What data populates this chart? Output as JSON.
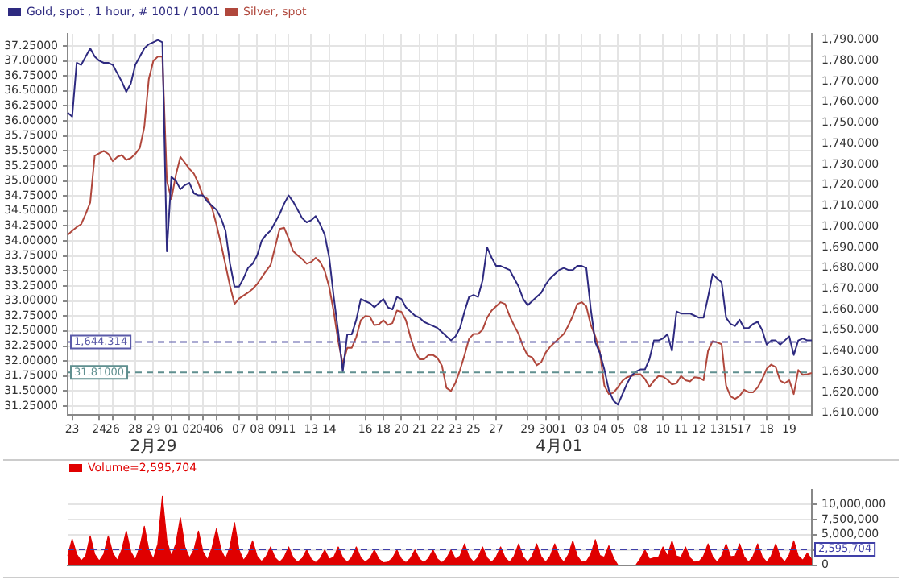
{
  "chart_data": [
    {
      "type": "line",
      "marker": "none",
      "grid": true,
      "legend": "top left",
      "categories": [
        null,
        "23",
        null,
        null,
        null,
        null,
        null,
        "24",
        null,
        null,
        "26",
        null,
        null,
        null,
        null,
        "28",
        null,
        null,
        null,
        "29\n2月29",
        null,
        null,
        null,
        "01",
        null,
        null,
        null,
        "02",
        null,
        null,
        "04",
        null,
        null,
        "06",
        null,
        null,
        null,
        null,
        "07",
        null,
        null,
        null,
        "08",
        null,
        null,
        null,
        "09",
        null,
        null,
        "11",
        null,
        null,
        null,
        null,
        "13",
        null,
        null,
        null,
        "14",
        null,
        null,
        null,
        null,
        null,
        null,
        null,
        "16",
        null,
        null,
        null,
        "18",
        null,
        null,
        null,
        "20",
        null,
        null,
        null,
        "21",
        null,
        null,
        null,
        "22",
        null,
        null,
        null,
        "23",
        null,
        null,
        null,
        "25",
        null,
        null,
        null,
        null,
        "27",
        null,
        null,
        null,
        null,
        null,
        null,
        "29",
        null,
        null,
        null,
        "30",
        null,
        null,
        "01\n4月01",
        null,
        null,
        null,
        null,
        "03",
        null,
        null,
        null,
        "04",
        null,
        null,
        null,
        "05",
        null,
        null,
        null,
        null,
        "08",
        null,
        null,
        null,
        null,
        "10",
        null,
        null,
        null,
        "11",
        null,
        null,
        null,
        "12",
        null,
        null,
        null,
        "13",
        null,
        null,
        "15",
        null,
        null,
        "17",
        null,
        null,
        null,
        null,
        "18",
        null,
        null,
        null,
        null,
        "19",
        null,
        null,
        null,
        null,
        null
      ],
      "series": [
        {
          "name": "Gold, spot , 1 hour, # 1001 / 1001",
          "color": "#2e2a80",
          "axis": "y2",
          "values": [
            1755,
            1753,
            1779,
            1778,
            1782,
            1786,
            1782,
            1780,
            1779,
            1779,
            1778,
            1774,
            1770,
            1765,
            1769,
            1778,
            1782,
            1786,
            1788,
            1789,
            1790,
            1789,
            1688,
            1724,
            1722,
            1718,
            1720,
            1721,
            1716,
            1715,
            1715,
            1712,
            1710,
            1708,
            1704,
            1698,
            1682,
            1671,
            1671,
            1675,
            1680,
            1682,
            1686,
            1693,
            1696,
            1698,
            1702,
            1706,
            1711,
            1715,
            1712,
            1708,
            1704,
            1702,
            1703,
            1705,
            1701,
            1696,
            1685,
            1666,
            1649,
            1630,
            1648,
            1648,
            1655,
            1665,
            1664,
            1663,
            1661,
            1663,
            1665,
            1661,
            1660,
            1666,
            1665,
            1661,
            1659,
            1657,
            1656,
            1654,
            1653,
            1652,
            1651,
            1649,
            1647,
            1645,
            1647,
            1651,
            1659,
            1666,
            1667,
            1666,
            1674,
            1690,
            1685,
            1681,
            1681,
            1680,
            1679,
            1675,
            1671,
            1665,
            1662,
            1664,
            1666,
            1668,
            1672,
            1675,
            1677,
            1679,
            1680,
            1679,
            1679,
            1681,
            1681,
            1680,
            1660,
            1644,
            1639,
            1631,
            1621,
            1616,
            1614,
            1619,
            1624,
            1628,
            1630,
            1631,
            1631,
            1636,
            1645,
            1645,
            1646,
            1648,
            1640,
            1659,
            1658,
            1658,
            1658,
            1657,
            1656,
            1656,
            1666,
            1677,
            1675,
            1673,
            1656,
            1653,
            1652,
            1655,
            1651,
            1651,
            1653,
            1654,
            1650,
            1643,
            1645,
            1645,
            1643,
            1645,
            1647,
            1638,
            1645,
            1646,
            1645,
            1645
          ]
        },
        {
          "name": "Silver, spot",
          "color": "#b0473c",
          "values": [
            34.1,
            34.17,
            34.23,
            34.28,
            34.45,
            34.64,
            35.42,
            35.46,
            35.5,
            35.45,
            35.33,
            35.4,
            35.43,
            35.35,
            35.38,
            35.45,
            35.55,
            35.9,
            36.7,
            37.0,
            37.07,
            37.07,
            35.0,
            34.7,
            35.1,
            35.4,
            35.3,
            35.2,
            35.12,
            34.96,
            34.75,
            34.7,
            34.55,
            34.27,
            33.95,
            33.6,
            33.25,
            32.95,
            33.04,
            33.09,
            33.14,
            33.2,
            33.28,
            33.39,
            33.5,
            33.6,
            33.9,
            34.2,
            34.22,
            34.04,
            33.83,
            33.76,
            33.7,
            33.62,
            33.65,
            33.72,
            33.65,
            33.5,
            33.23,
            32.82,
            32.33,
            31.95,
            32.22,
            32.22,
            32.4,
            32.68,
            32.75,
            32.74,
            32.6,
            32.61,
            32.68,
            32.6,
            32.63,
            32.84,
            32.82,
            32.68,
            32.4,
            32.17,
            32.03,
            32.03,
            32.1,
            32.1,
            32.05,
            31.92,
            31.55,
            31.5,
            31.64,
            31.85,
            32.1,
            32.37,
            32.45,
            32.45,
            32.52,
            32.72,
            32.84,
            32.91,
            32.98,
            32.95,
            32.75,
            32.59,
            32.45,
            32.24,
            32.09,
            32.06,
            31.93,
            31.98,
            32.14,
            32.24,
            32.31,
            32.38,
            32.45,
            32.59,
            32.75,
            32.95,
            32.98,
            32.91,
            32.6,
            32.41,
            32.15,
            31.59,
            31.45,
            31.47,
            31.56,
            31.67,
            31.73,
            31.75,
            31.78,
            31.78,
            31.7,
            31.57,
            31.67,
            31.75,
            31.74,
            31.69,
            31.61,
            31.63,
            31.75,
            31.68,
            31.66,
            31.73,
            31.72,
            31.68,
            32.17,
            32.33,
            32.31,
            32.28,
            31.59,
            31.41,
            31.37,
            31.42,
            31.52,
            31.48,
            31.48,
            31.56,
            31.7,
            31.87,
            31.94,
            31.9,
            31.67,
            31.63,
            31.68,
            31.45,
            31.85,
            31.77,
            31.78,
            31.8
          ]
        }
      ],
      "ylim": [
        31.1,
        37.45
      ],
      "yticks": [
        {
          "value": 31.25,
          "label": "31.25000"
        },
        {
          "value": 31.5,
          "label": "31.50000"
        },
        {
          "value": 31.75,
          "label": "31.75000"
        },
        {
          "value": 32,
          "label": "32.00000"
        },
        {
          "value": 32.25,
          "label": "32.25000"
        },
        {
          "value": 32.5,
          "label": "32.50000"
        },
        {
          "value": 32.75,
          "label": "32.75000"
        },
        {
          "value": 33,
          "label": "33.00000"
        },
        {
          "value": 33.25,
          "label": "33.25000"
        },
        {
          "value": 33.5,
          "label": "33.50000"
        },
        {
          "value": 33.75,
          "label": "33.75000"
        },
        {
          "value": 34,
          "label": "34.00000"
        },
        {
          "value": 34.25,
          "label": "34.25000"
        },
        {
          "value": 34.5,
          "label": "34.50000"
        },
        {
          "value": 34.75,
          "label": "34.75000"
        },
        {
          "value": 35,
          "label": "35.00000"
        },
        {
          "value": 35.25,
          "label": "35.25000"
        },
        {
          "value": 35.5,
          "label": "35.50000"
        },
        {
          "value": 35.75,
          "label": "35.75000"
        },
        {
          "value": 36,
          "label": "36.00000"
        },
        {
          "value": 36.25,
          "label": "36.25000"
        },
        {
          "value": 36.5,
          "label": "36.50000"
        },
        {
          "value": 36.75,
          "label": "36.75000"
        },
        {
          "value": 37,
          "label": "37.00000"
        },
        {
          "value": 37.25,
          "label": "37.25000"
        }
      ],
      "y2lim": [
        1609,
        1793
      ],
      "y2ticks": [
        {
          "value": 1610,
          "label": "1,610.000"
        },
        {
          "value": 1620,
          "label": "1,620.000"
        },
        {
          "value": 1630,
          "label": "1,630.000"
        },
        {
          "value": 1640,
          "label": "1,640.000"
        },
        {
          "value": 1650,
          "label": "1,650.000"
        },
        {
          "value": 1660,
          "label": "1,660.000"
        },
        {
          "value": 1670,
          "label": "1,670.000"
        },
        {
          "value": 1680,
          "label": "1,680.000"
        },
        {
          "value": 1690,
          "label": "1,690.000"
        },
        {
          "value": 1700,
          "label": "1,700.000"
        },
        {
          "value": 1710,
          "label": "1,710.000"
        },
        {
          "value": 1720,
          "label": "1,720.000"
        },
        {
          "value": 1730,
          "label": "1,730.000"
        },
        {
          "value": 1740,
          "label": "1,740.000"
        },
        {
          "value": 1750,
          "label": "1,750.000"
        },
        {
          "value": 1760,
          "label": "1,760.000"
        },
        {
          "value": 1770,
          "label": "1,770.000"
        },
        {
          "value": 1780,
          "label": "1,780.000"
        },
        {
          "value": 1790,
          "label": "1,790.000"
        }
      ],
      "ref_lines": [
        {
          "axis": "y2",
          "value": 1644.314,
          "label": "1,644.314",
          "color": "#5a5aa8",
          "line_style": "dashed"
        },
        {
          "axis": "y",
          "value": 31.81,
          "label": "31.81000",
          "color": "#5f8f8f",
          "line_style": "dashed"
        }
      ]
    },
    {
      "type": "area",
      "marker": "none",
      "grid": true,
      "legend": "top left",
      "tick_labels": "y",
      "categories": [
        null,
        null,
        null,
        null,
        null,
        null,
        null,
        null,
        null,
        null,
        null,
        null,
        null,
        null,
        null,
        null,
        null,
        null,
        null,
        null,
        null,
        null,
        null,
        null,
        null,
        null,
        null,
        null,
        null,
        null,
        null,
        null,
        null,
        null,
        null,
        null,
        null,
        null,
        null,
        null,
        null,
        null,
        null,
        null,
        null,
        null,
        null,
        null,
        null,
        null,
        null,
        null,
        null,
        null,
        null,
        null,
        null,
        null,
        null,
        null,
        null,
        null,
        null,
        null,
        null,
        null,
        null,
        null,
        null,
        null,
        null,
        null,
        null,
        null,
        null,
        null,
        null,
        null,
        null,
        null,
        null,
        null,
        null,
        null,
        null,
        null,
        null,
        null,
        null,
        null,
        null,
        null,
        null,
        null,
        null,
        null,
        null,
        null,
        null,
        null,
        null,
        null,
        null,
        null,
        null,
        null,
        null,
        null,
        null,
        null,
        null,
        null,
        null,
        null,
        null,
        null,
        null,
        null,
        null,
        null,
        null,
        null,
        null,
        null,
        null,
        null,
        null,
        null,
        null,
        null,
        null,
        null,
        null,
        null,
        null,
        null,
        null,
        null,
        null,
        null,
        null,
        null,
        null,
        null,
        null,
        null,
        null,
        null,
        null,
        null,
        null,
        null,
        null,
        null,
        null,
        null,
        null,
        null,
        null,
        null,
        null,
        null,
        null,
        null,
        null,
        null
      ],
      "series": [
        {
          "name": "Volume=2,595,704",
          "color": "#e00000",
          "values": [
            1500000,
            4300000,
            1800000,
            700000,
            1500000,
            4800000,
            1800000,
            700000,
            1800000,
            4800000,
            2000000,
            800000,
            2500000,
            5600000,
            2200000,
            900000,
            3000000,
            6400000,
            2500000,
            1000000,
            3500000,
            11300000,
            4000000,
            1500000,
            3500000,
            7800000,
            3000000,
            1200000,
            2500000,
            5600000,
            2200000,
            900000,
            2800000,
            6000000,
            2500000,
            1000000,
            3000000,
            7000000,
            2500000,
            800000,
            1800000,
            4000000,
            1500000,
            600000,
            1400000,
            3000000,
            1200000,
            500000,
            1300000,
            3000000,
            1200000,
            500000,
            1100000,
            2500000,
            1000000,
            400000,
            1100000,
            2500000,
            1000000,
            1300000,
            3000000,
            1200000,
            500000,
            1300000,
            3000000,
            1200000,
            500000,
            1100000,
            2500000,
            1000000,
            400000,
            500000,
            1100000,
            2500000,
            1000000,
            400000,
            1100000,
            2500000,
            1000000,
            400000,
            1100000,
            2500000,
            1000000,
            400000,
            1100000,
            2500000,
            1000000,
            1500000,
            3500000,
            1400000,
            500000,
            1300000,
            3000000,
            1200000,
            500000,
            1300000,
            3000000,
            1200000,
            500000,
            1500000,
            3500000,
            1400000,
            500000,
            1500000,
            3500000,
            1400000,
            500000,
            1500000,
            3500000,
            1400000,
            500000,
            1700000,
            4000000,
            1500000,
            500000,
            600000,
            1800000,
            4200000,
            1600000,
            1300000,
            3200000,
            1200000,
            0,
            0,
            0,
            0,
            0,
            1100000,
            2500000,
            1000000,
            1200000,
            1300000,
            3000000,
            1500000,
            4000000,
            1500000,
            1300000,
            3000000,
            1200000,
            500000,
            600000,
            1500000,
            3500000,
            1400000,
            500000,
            1500000,
            3500000,
            1400000,
            1500000,
            3500000,
            1400000,
            500000,
            1500000,
            3500000,
            1400000,
            500000,
            1500000,
            3500000,
            1400000,
            500000,
            1700000,
            4000000,
            1500000,
            800000,
            2000000,
            900000
          ]
        }
      ],
      "ylim": [
        0,
        12400000
      ],
      "yticks": [
        0,
        {
          "value": 2500000,
          "label": null
        },
        {
          "value": 5000000,
          "label": "5,000,000"
        },
        {
          "value": 7500000,
          "label": "7,500,000"
        },
        {
          "value": 10000000,
          "label": "10,000,000"
        }
      ],
      "ref_lines": [
        {
          "axis": "y",
          "value": 2595704,
          "label": "2,595,704",
          "color": "#4040a8",
          "line_style": "dashed"
        }
      ]
    }
  ]
}
